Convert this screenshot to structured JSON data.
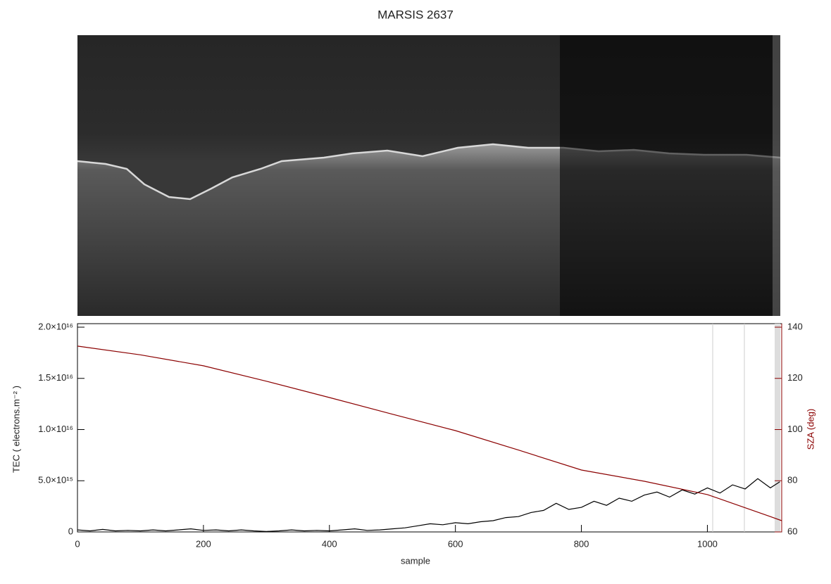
{
  "chart_data": {
    "type": "line",
    "title": "MARSIS 2637",
    "xlabel": "sample",
    "ylabel": "TEC ( electrons.m⁻² )",
    "y2label": "SZA (deg)",
    "xlim": [
      0,
      1118
    ],
    "xticks": [
      0,
      200,
      400,
      600,
      800,
      1000
    ],
    "ylim": [
      0,
      2e+16
    ],
    "yticks": [
      0,
      {
        "value": 5000000000000000.0,
        "label": "5.0×10¹⁵"
      },
      {
        "value": 1e+16,
        "label": "1.0×10¹⁶"
      },
      {
        "value": 1.5e+16,
        "label": "1.5×10¹⁶"
      },
      {
        "value": 2e+16,
        "label": "2.0×10¹⁶"
      }
    ],
    "y2lim": [
      60,
      140
    ],
    "y2ticks": [
      60,
      80,
      100,
      120,
      140
    ],
    "y2color": "#8b0000",
    "series": [
      {
        "color": "#000000",
        "x": [
          0,
          20,
          40,
          60,
          80,
          100,
          120,
          140,
          160,
          180,
          200,
          220,
          240,
          260,
          280,
          300,
          320,
          340,
          360,
          380,
          400,
          420,
          440,
          460,
          480,
          500,
          520,
          540,
          560,
          580,
          600,
          620,
          640,
          660,
          680,
          700,
          720,
          740,
          760,
          780,
          800,
          820,
          840,
          860,
          880,
          900,
          920,
          940,
          960,
          980,
          1000,
          1020,
          1040,
          1060,
          1080,
          1100,
          1115
        ],
        "values": [
          200000000000000.0,
          100000000000000.0,
          250000000000000.0,
          100000000000000.0,
          150000000000000.0,
          100000000000000.0,
          200000000000000.0,
          100000000000000.0,
          200000000000000.0,
          300000000000000.0,
          150000000000000.0,
          200000000000000.0,
          100000000000000.0,
          200000000000000.0,
          100000000000000.0,
          50000000000000.0,
          100000000000000.0,
          200000000000000.0,
          100000000000000.0,
          150000000000000.0,
          100000000000000.0,
          200000000000000.0,
          300000000000000.0,
          150000000000000.0,
          200000000000000.0,
          300000000000000.0,
          400000000000000.0,
          600000000000000.0,
          800000000000000.0,
          700000000000000.0,
          900000000000000.0,
          800000000000000.0,
          1000000000000000.0,
          1100000000000000.0,
          1400000000000000.0,
          1500000000000000.0,
          1900000000000000.0,
          2100000000000000.0,
          2800000000000000.0,
          2200000000000000.0,
          2400000000000000.0,
          3000000000000000.0,
          2600000000000000.0,
          3300000000000000.0,
          3000000000000000.0,
          3600000000000000.0,
          3900000000000000.0,
          3400000000000000.0,
          4100000000000000.0,
          3700000000000000.0,
          4300000000000000.0,
          3800000000000000.0,
          4600000000000000.0,
          4200000000000000.0,
          5200000000000000.0,
          4300000000000000.0,
          4900000000000000.0
        ]
      },
      {
        "color": "#8b0000",
        "axis": "y2",
        "x": [
          0,
          100,
          200,
          300,
          400,
          500,
          600,
          700,
          800,
          900,
          1000,
          1100,
          1118
        ],
        "values": [
          132.6,
          129.2,
          124.9,
          118.9,
          112.5,
          106.0,
          99.6,
          92.0,
          84.2,
          79.8,
          74.6,
          66.0,
          64.4
        ]
      }
    ]
  }
}
